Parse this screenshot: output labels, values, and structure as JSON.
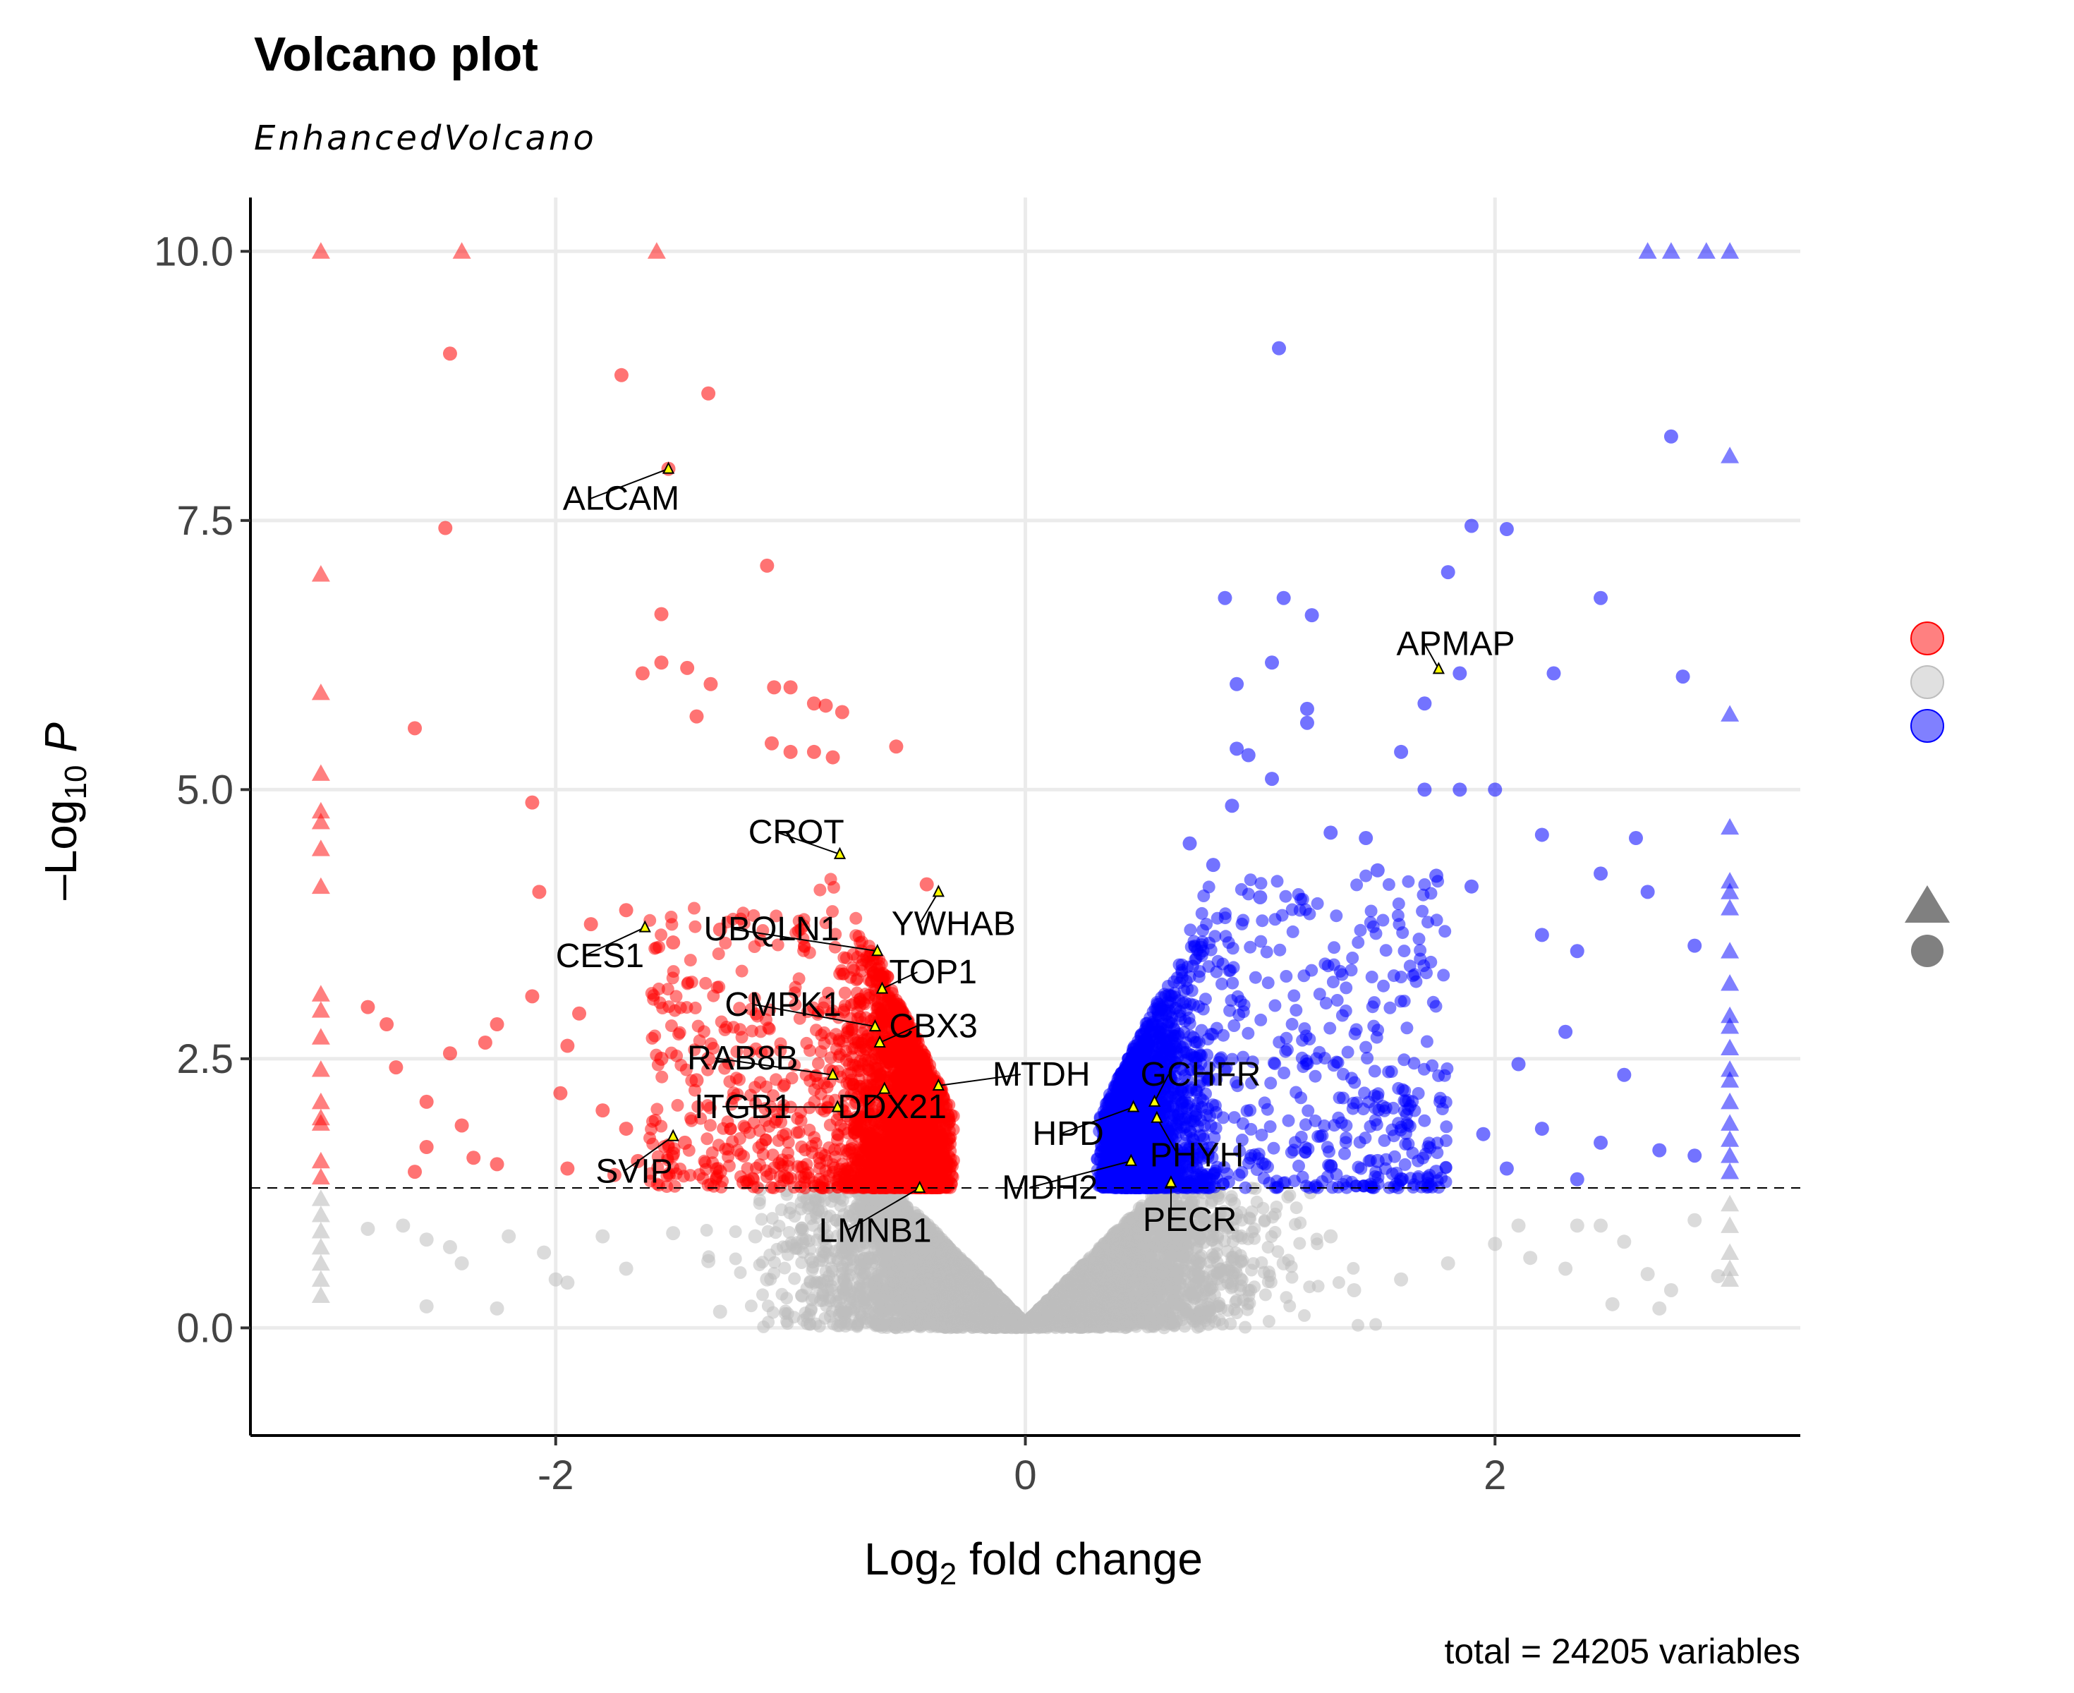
{
  "chart_data": {
    "type": "scatter",
    "title": "Volcano plot",
    "subtitle": "EnhancedVolcano",
    "xlabel": {
      "prefix": "Log",
      "sub": "2",
      "suffix": " fold change"
    },
    "ylabel": {
      "prefix": "–Log",
      "sub": "10",
      "suffix": " P"
    },
    "caption": "total = 24205 variables",
    "xlim": [
      -3.3,
      3.3
    ],
    "ylim": [
      -1.0,
      10.5
    ],
    "xticks": [
      {
        "v": -2,
        "label": "-2"
      },
      {
        "v": 0,
        "label": "0"
      },
      {
        "v": 2,
        "label": "2"
      }
    ],
    "yticks": [
      {
        "v": 0,
        "label": "0.0"
      },
      {
        "v": 2.5,
        "label": "2.5"
      },
      {
        "v": 5,
        "label": "5.0"
      },
      {
        "v": 7.5,
        "label": "7.5"
      },
      {
        "v": 10,
        "label": "10.0"
      }
    ],
    "p_cutoff_log10": 1.3,
    "grid": true,
    "legend_position": "right",
    "colors": {
      "down": "#ff0000",
      "ns": "#bebebe",
      "up": "#0000ff",
      "legend_down": "#ff8080",
      "legend_ns": "#e0e0e0",
      "legend_up": "#8080ff",
      "shape_key": "#808080"
    },
    "series": [
      {
        "group": "down",
        "color": "#ff0000",
        "points": [
          [
            -2.45,
            9.05
          ],
          [
            -1.72,
            8.85
          ],
          [
            -1.35,
            8.68
          ],
          [
            -1.52,
            7.98
          ],
          [
            -2.47,
            7.43
          ],
          [
            -1.1,
            7.08
          ],
          [
            -1.55,
            6.63
          ],
          [
            -1.55,
            6.18
          ],
          [
            -1.63,
            6.08
          ],
          [
            -1.44,
            6.13
          ],
          [
            -1.34,
            5.98
          ],
          [
            -1.0,
            5.95
          ],
          [
            -1.07,
            5.95
          ],
          [
            -0.9,
            5.8
          ],
          [
            -0.85,
            5.78
          ],
          [
            -0.78,
            5.72
          ],
          [
            -1.4,
            5.68
          ],
          [
            -2.6,
            5.57
          ],
          [
            -0.55,
            5.4
          ],
          [
            -1.08,
            5.43
          ],
          [
            -1.0,
            5.35
          ],
          [
            -0.9,
            5.35
          ],
          [
            -0.82,
            5.3
          ],
          [
            -2.1,
            4.88
          ],
          [
            -2.07,
            4.05
          ],
          [
            -1.7,
            3.88
          ],
          [
            -1.85,
            3.75
          ],
          [
            -0.42,
            4.12
          ],
          [
            -1.3,
            3.7
          ],
          [
            -1.5,
            3.58
          ],
          [
            -2.8,
            2.98
          ],
          [
            -2.72,
            2.82
          ],
          [
            -2.25,
            2.82
          ],
          [
            -2.1,
            3.08
          ],
          [
            -1.9,
            2.92
          ],
          [
            -1.95,
            2.62
          ],
          [
            -2.3,
            2.65
          ],
          [
            -1.55,
            2.5
          ],
          [
            -2.45,
            2.55
          ],
          [
            -2.68,
            2.42
          ],
          [
            -2.55,
            2.1
          ],
          [
            -1.98,
            2.18
          ],
          [
            -2.4,
            1.88
          ],
          [
            -1.8,
            2.02
          ],
          [
            -1.7,
            1.85
          ],
          [
            -2.55,
            1.68
          ],
          [
            -2.35,
            1.58
          ],
          [
            -2.6,
            1.45
          ],
          [
            -2.25,
            1.52
          ],
          [
            -1.95,
            1.48
          ],
          [
            -1.75,
            1.42
          ],
          [
            -1.35,
            2.5
          ],
          [
            -1.4,
            2.3
          ],
          [
            -1.45,
            1.72
          ],
          [
            -1.65,
            1.55
          ],
          [
            -1.5,
            1.62
          ],
          [
            -1.3,
            1.45
          ],
          [
            -1.2,
            1.35
          ]
        ]
      },
      {
        "group": "up",
        "color": "#0000ff",
        "points": [
          [
            1.08,
            9.1
          ],
          [
            2.75,
            8.28
          ],
          [
            1.9,
            7.45
          ],
          [
            2.05,
            7.42
          ],
          [
            1.8,
            7.02
          ],
          [
            2.45,
            6.78
          ],
          [
            0.85,
            6.78
          ],
          [
            1.1,
            6.78
          ],
          [
            1.22,
            6.62
          ],
          [
            1.85,
            6.08
          ],
          [
            2.25,
            6.08
          ],
          [
            1.7,
            5.8
          ],
          [
            2.8,
            6.05
          ],
          [
            0.9,
            5.98
          ],
          [
            1.05,
            6.18
          ],
          [
            1.2,
            5.75
          ],
          [
            1.2,
            5.62
          ],
          [
            0.9,
            5.38
          ],
          [
            0.95,
            5.32
          ],
          [
            1.05,
            5.1
          ],
          [
            1.6,
            5.35
          ],
          [
            1.7,
            5.0
          ],
          [
            1.85,
            5.0
          ],
          [
            2.0,
            5.0
          ],
          [
            0.88,
            4.85
          ],
          [
            0.7,
            4.5
          ],
          [
            1.3,
            4.6
          ],
          [
            1.45,
            4.55
          ],
          [
            2.2,
            4.58
          ],
          [
            2.6,
            4.55
          ],
          [
            0.8,
            4.3
          ],
          [
            1.0,
            4.0
          ],
          [
            1.5,
            4.25
          ],
          [
            1.75,
            4.2
          ],
          [
            1.9,
            4.1
          ],
          [
            2.45,
            4.22
          ],
          [
            2.65,
            4.05
          ],
          [
            2.2,
            3.65
          ],
          [
            2.35,
            3.5
          ],
          [
            2.85,
            3.55
          ],
          [
            2.1,
            2.45
          ],
          [
            2.3,
            2.75
          ],
          [
            2.55,
            2.35
          ],
          [
            2.7,
            1.65
          ],
          [
            2.85,
            1.6
          ],
          [
            2.45,
            1.72
          ],
          [
            1.95,
            1.8
          ],
          [
            2.2,
            1.85
          ],
          [
            2.05,
            1.48
          ],
          [
            2.35,
            1.38
          ],
          [
            1.75,
            1.45
          ],
          [
            1.5,
            1.55
          ],
          [
            1.3,
            1.5
          ],
          [
            1.6,
            1.38
          ]
        ]
      },
      {
        "group": "ns",
        "color": "#bebebe",
        "points": [
          [
            -2.8,
            0.92
          ],
          [
            -2.65,
            0.95
          ],
          [
            -2.55,
            0.82
          ],
          [
            -2.45,
            0.75
          ],
          [
            -2.4,
            0.6
          ],
          [
            -2.2,
            0.85
          ],
          [
            -2.05,
            0.7
          ],
          [
            -2.55,
            0.2
          ],
          [
            -2.25,
            0.18
          ],
          [
            -1.95,
            0.42
          ],
          [
            -1.8,
            0.85
          ],
          [
            -1.7,
            0.55
          ],
          [
            -1.5,
            0.88
          ],
          [
            -1.35,
            0.62
          ],
          [
            -1.3,
            0.15
          ],
          [
            -1.15,
            0.85
          ],
          [
            -2.0,
            0.45
          ],
          [
            2.0,
            0.78
          ],
          [
            2.15,
            0.65
          ],
          [
            2.3,
            0.55
          ],
          [
            2.45,
            0.95
          ],
          [
            2.55,
            0.8
          ],
          [
            2.65,
            0.5
          ],
          [
            2.75,
            0.35
          ],
          [
            2.85,
            1.0
          ],
          [
            2.95,
            0.48
          ],
          [
            2.5,
            0.22
          ],
          [
            2.7,
            0.18
          ],
          [
            2.35,
            0.95
          ],
          [
            2.1,
            0.95
          ],
          [
            1.8,
            0.6
          ],
          [
            1.6,
            0.45
          ],
          [
            1.4,
            0.35
          ],
          [
            1.3,
            0.85
          ],
          [
            1.1,
            0.6
          ],
          [
            -1.1,
            0.45
          ],
          [
            -0.95,
            0.3
          ]
        ]
      },
      {
        "group": "ns-cloud",
        "color": "#bebebe",
        "points": []
      }
    ],
    "capped_triangles": {
      "down": [
        [
          -3.0,
          10.0
        ],
        [
          -2.4,
          10.0
        ],
        [
          -1.57,
          10.0
        ],
        [
          -3.0,
          7.0
        ],
        [
          -3.0,
          5.9
        ],
        [
          -3.0,
          5.15
        ],
        [
          -3.0,
          4.8
        ],
        [
          -3.0,
          4.7
        ],
        [
          -3.0,
          4.45
        ],
        [
          -3.0,
          4.1
        ],
        [
          -3.0,
          3.1
        ],
        [
          -3.0,
          2.95
        ],
        [
          -3.0,
          2.7
        ],
        [
          -3.0,
          2.4
        ],
        [
          -3.0,
          2.1
        ],
        [
          -3.0,
          1.95
        ],
        [
          -3.0,
          1.9
        ],
        [
          -3.0,
          1.55
        ],
        [
          -3.0,
          1.4
        ]
      ],
      "up": [
        [
          2.65,
          10.0
        ],
        [
          2.75,
          10.0
        ],
        [
          2.9,
          10.0
        ],
        [
          3.0,
          10.0
        ],
        [
          3.0,
          8.1
        ],
        [
          3.0,
          5.7
        ],
        [
          3.0,
          4.65
        ],
        [
          3.0,
          4.15
        ],
        [
          3.0,
          4.05
        ],
        [
          3.0,
          3.9
        ],
        [
          3.0,
          3.5
        ],
        [
          3.0,
          3.2
        ],
        [
          3.0,
          2.9
        ],
        [
          3.0,
          2.8
        ],
        [
          3.0,
          2.6
        ],
        [
          3.0,
          2.4
        ],
        [
          3.0,
          2.3
        ],
        [
          3.0,
          2.1
        ],
        [
          3.0,
          1.9
        ],
        [
          3.0,
          1.75
        ],
        [
          3.0,
          1.6
        ],
        [
          3.0,
          1.45
        ]
      ],
      "ns": [
        [
          -3.0,
          1.2
        ],
        [
          -3.0,
          1.05
        ],
        [
          -3.0,
          0.9
        ],
        [
          -3.0,
          0.75
        ],
        [
          -3.0,
          0.6
        ],
        [
          -3.0,
          0.45
        ],
        [
          -3.0,
          0.3
        ],
        [
          3.0,
          1.15
        ],
        [
          3.0,
          0.95
        ],
        [
          3.0,
          0.7
        ],
        [
          3.0,
          0.55
        ],
        [
          3.0,
          0.45
        ]
      ]
    },
    "labeled_genes": [
      {
        "name": "ALCAM",
        "x": -1.52,
        "y": 7.98,
        "lx": -1.97,
        "ly": 7.6
      },
      {
        "name": "APMAP",
        "x": 1.76,
        "y": 6.12,
        "lx": 1.58,
        "ly": 6.25
      },
      {
        "name": "CROT",
        "x": -0.79,
        "y": 4.4,
        "lx": -1.18,
        "ly": 4.5
      },
      {
        "name": "YWHAB",
        "x": -0.37,
        "y": 4.05,
        "lx": -0.57,
        "ly": 3.65
      },
      {
        "name": "UBQLN1",
        "x": -0.63,
        "y": 3.5,
        "lx": -1.37,
        "ly": 3.6
      },
      {
        "name": "CES1",
        "x": -1.62,
        "y": 3.72,
        "lx": -2.0,
        "ly": 3.35
      },
      {
        "name": "TOP1",
        "x": -0.61,
        "y": 3.15,
        "lx": -0.58,
        "ly": 3.2
      },
      {
        "name": "CMPK1",
        "x": -0.64,
        "y": 2.8,
        "lx": -1.28,
        "ly": 2.9
      },
      {
        "name": "CBX3",
        "x": -0.62,
        "y": 2.65,
        "lx": -0.58,
        "ly": 2.7
      },
      {
        "name": "RAB8B",
        "x": -0.82,
        "y": 2.35,
        "lx": -1.44,
        "ly": 2.4
      },
      {
        "name": "MTDH",
        "x": -0.37,
        "y": 2.25,
        "lx": -0.14,
        "ly": 2.25
      },
      {
        "name": "GCHFR",
        "x": 0.55,
        "y": 2.1,
        "lx": 0.49,
        "ly": 2.25
      },
      {
        "name": "ITGB1",
        "x": -0.8,
        "y": 2.05,
        "lx": -1.41,
        "ly": 1.95
      },
      {
        "name": "DDX21",
        "x": -0.6,
        "y": 2.22,
        "lx": -0.8,
        "ly": 1.95
      },
      {
        "name": "HPD",
        "x": 0.46,
        "y": 2.05,
        "lx": 0.03,
        "ly": 1.7
      },
      {
        "name": "PHYH",
        "x": 0.56,
        "y": 1.95,
        "lx": 0.53,
        "ly": 1.5
      },
      {
        "name": "SVIP",
        "x": -1.5,
        "y": 1.78,
        "lx": -1.83,
        "ly": 1.35
      },
      {
        "name": "MDH2",
        "x": 0.45,
        "y": 1.55,
        "lx": -0.1,
        "ly": 1.2
      },
      {
        "name": "PECR",
        "x": 0.62,
        "y": 1.35,
        "lx": 0.5,
        "ly": 0.9
      },
      {
        "name": "LMNB1",
        "x": -0.45,
        "y": 1.3,
        "lx": -0.88,
        "ly": 0.8
      }
    ]
  }
}
